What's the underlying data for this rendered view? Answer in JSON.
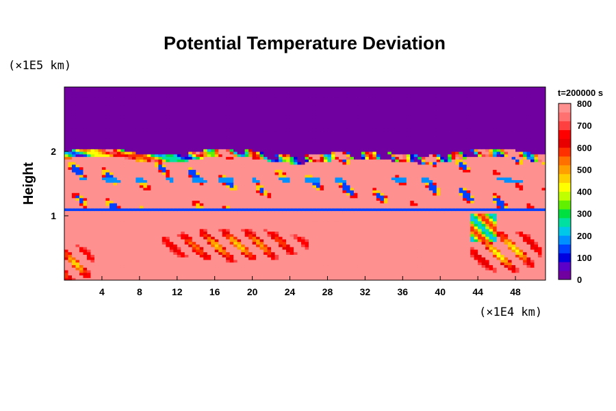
{
  "chart_data": {
    "type": "heatmap",
    "title": "Potential Temperature Deviation",
    "xlabel": "",
    "ylabel": "Height",
    "x_unit": "(×1E4 km)",
    "y_unit": "(×1E5 km)",
    "time_label": "t=200000 s",
    "xlim": [
      0,
      51.2
    ],
    "ylim": [
      0,
      3
    ],
    "x_ticks": [
      "4",
      "8",
      "12",
      "16",
      "20",
      "24",
      "28",
      "32",
      "36",
      "40",
      "44",
      "48"
    ],
    "x_tick_values": [
      4,
      8,
      12,
      16,
      20,
      24,
      28,
      32,
      36,
      40,
      44,
      48
    ],
    "y_ticks": [
      "1",
      "2"
    ],
    "y_tick_values": [
      1,
      2
    ],
    "colorbar": {
      "min": 0,
      "max": 800,
      "ticks": [
        "0",
        "100",
        "200",
        "300",
        "400",
        "500",
        "600",
        "700",
        "800"
      ],
      "tick_values": [
        0,
        100,
        200,
        300,
        400,
        500,
        600,
        700,
        800
      ],
      "colors": [
        "#7000a0",
        "#5a00c8",
        "#0000e0",
        "#0040ff",
        "#0090ff",
        "#00c8e8",
        "#00e0a0",
        "#00e040",
        "#60f000",
        "#c0ff00",
        "#ffff00",
        "#ffd000",
        "#ffa000",
        "#ff7000",
        "#ff3000",
        "#e80000",
        "#ff0000",
        "#ff4040",
        "#ff7070",
        "#ff9090"
      ]
    },
    "regions": [
      {
        "name": "upper-layer",
        "y_range": [
          2.0,
          3.0
        ],
        "value": 0
      },
      {
        "name": "mixed-band",
        "y_range": [
          1.1,
          2.0
        ],
        "value": 800
      },
      {
        "name": "inversion-line",
        "y_range": [
          1.05,
          1.12
        ],
        "value": 150
      },
      {
        "name": "lower-layer",
        "y_range": [
          0.0,
          1.05
        ],
        "value": 800
      }
    ]
  }
}
